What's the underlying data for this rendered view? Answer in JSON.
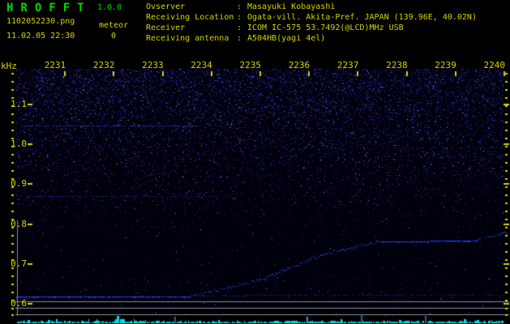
{
  "header": {
    "title": "HROFFT",
    "version": "1.0.0",
    "filename": "1102052230.png",
    "mode": "meteor",
    "count": "0",
    "datetime": "11.02.05 22:30",
    "colon": ":",
    "info": [
      {
        "label": "Ovserver",
        "value": "Masayuki Kobayashi"
      },
      {
        "label": "Receiving Location",
        "value": "Ogata-vill. Akita-Pref. JAPAN (139.96E, 40.02N)"
      },
      {
        "label": "Receiver",
        "value": "ICOM IC-575 53.7492(@LCD)MHz USB"
      },
      {
        "label": "Receiving antenna",
        "value": "A504HB(yagi 4el)"
      }
    ]
  },
  "chart_data": {
    "type": "heatmap",
    "subtype": "radio-meteor-spectrogram",
    "title": "HROFFT 10-minute spectrogram 22:30-22:40",
    "ylabel": "kHz",
    "y_unit": "kHz",
    "y_ticks": [
      "1.1",
      "1.0",
      "0.9",
      "0.8",
      "0.7",
      "0.6"
    ],
    "ylim_khz": [
      0.57,
      1.19
    ],
    "x_ticks": [
      "2231",
      "2232",
      "2233",
      "2234",
      "2235",
      "2236",
      "2237",
      "2238",
      "2239",
      "2240"
    ],
    "time_range": [
      "22:30",
      "22:40"
    ],
    "meteor_count": 0,
    "legend": "none",
    "grid": false,
    "features": [
      {
        "name": "carrier-1.047kHz",
        "type": "polyline",
        "intensity": "medium",
        "points": [
          [
            0.1,
            1.047
          ],
          [
            3.7,
            1.047
          ]
        ]
      },
      {
        "name": "carrier-1.047kHz-drift",
        "type": "polyline",
        "intensity": "vfaint",
        "points": [
          [
            3.7,
            1.046
          ],
          [
            10.0,
            1.03
          ]
        ]
      },
      {
        "name": "carrier-0.992kHz",
        "type": "polyline",
        "intensity": "vfaint",
        "points": [
          [
            5.2,
            0.992
          ],
          [
            10.0,
            0.992
          ]
        ]
      },
      {
        "name": "carrier-0.970kHz",
        "type": "polyline",
        "intensity": "vfaint",
        "points": [
          [
            5.5,
            0.97
          ],
          [
            10.0,
            0.97
          ]
        ]
      },
      {
        "name": "carrier-0.870kHz",
        "type": "polyline",
        "intensity": "faint",
        "points": [
          [
            0.0,
            0.87
          ],
          [
            4.4,
            0.87
          ]
        ]
      },
      {
        "name": "carrier-0.794kHz",
        "type": "polyline",
        "intensity": "vfaint",
        "points": [
          [
            0.0,
            0.794
          ],
          [
            3.8,
            0.794
          ]
        ]
      },
      {
        "name": "main-carrier-flat",
        "type": "polyline",
        "intensity": "bright",
        "points": [
          [
            0.0,
            0.619
          ],
          [
            3.57,
            0.619
          ]
        ]
      },
      {
        "name": "main-carrier-residual",
        "type": "polyline",
        "intensity": "faint",
        "points": [
          [
            3.6,
            0.621
          ],
          [
            10.0,
            0.623
          ]
        ]
      },
      {
        "name": "main-carrier-chirp",
        "type": "polyline",
        "intensity": "scatter",
        "points": [
          [
            3.57,
            0.619
          ],
          [
            5.0,
            0.66
          ],
          [
            6.3,
            0.725
          ],
          [
            7.4,
            0.756
          ]
        ]
      },
      {
        "name": "main-carrier-plateau",
        "type": "polyline",
        "intensity": "bright",
        "points": [
          [
            7.45,
            0.757
          ],
          [
            9.4,
            0.758
          ]
        ]
      },
      {
        "name": "main-carrier-end-rise",
        "type": "polyline",
        "intensity": "scatter",
        "points": [
          [
            9.4,
            0.758
          ],
          [
            10.05,
            0.781
          ]
        ]
      },
      {
        "name": "doppler-spur",
        "type": "vspur",
        "intensity": "faint",
        "t": 7.35,
        "f1": 0.757,
        "f2": 0.79
      }
    ],
    "noise_level_bar": {
      "position": "bottom",
      "color": "#00d0e0"
    }
  },
  "colors": {
    "background": "#000000",
    "text_yellow": "#d4d400",
    "text_green": "#00d800",
    "noise_blue": "#2020c0",
    "signal_blue": "#2840e0",
    "level_bar_cyan": "#00d0e0",
    "grid_gray": "#8c8c8c"
  }
}
